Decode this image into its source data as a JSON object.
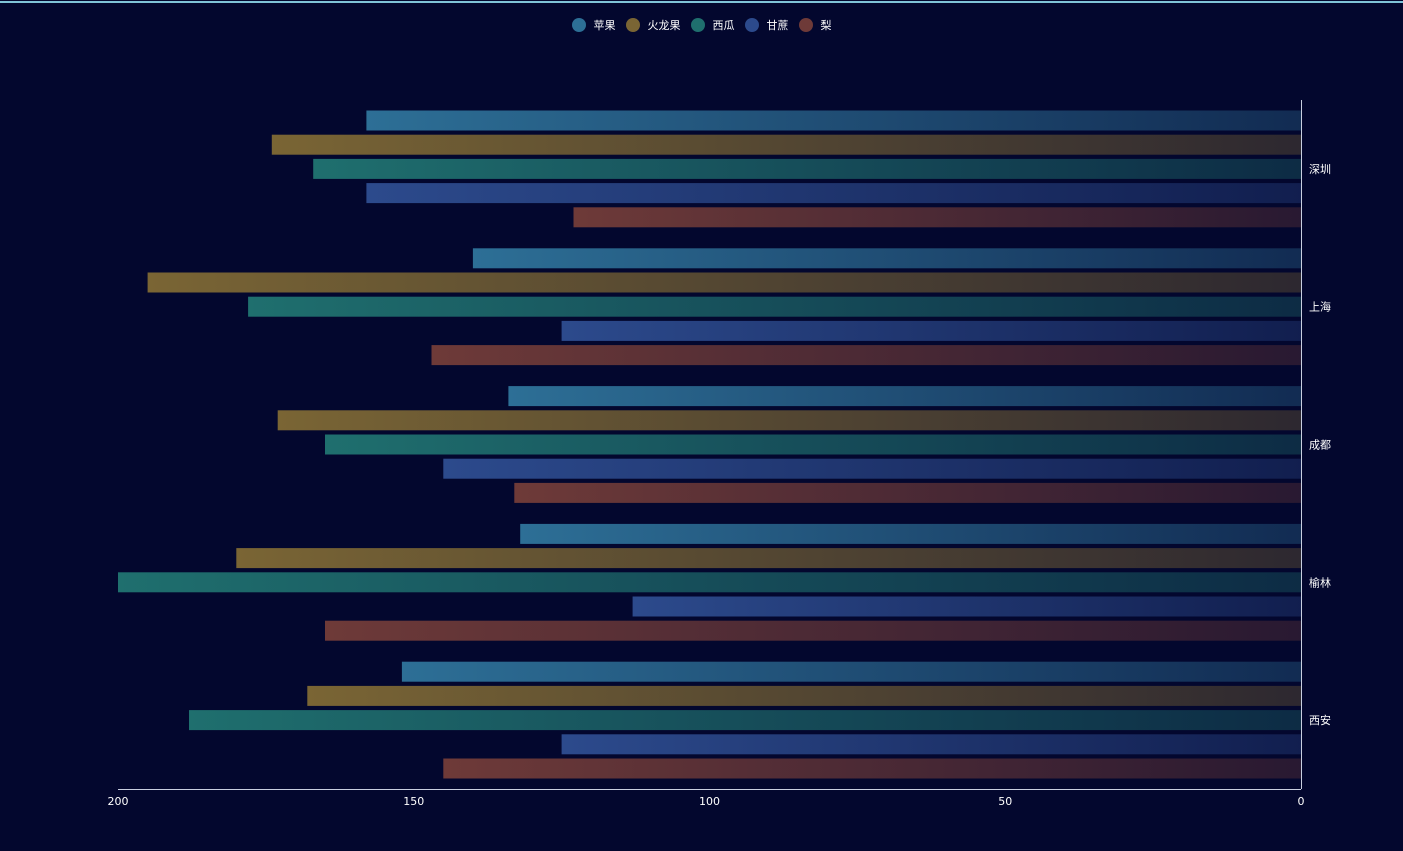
{
  "chart_data": {
    "type": "bar",
    "orientation": "horizontal",
    "x_axis_direction": "reversed",
    "y_axis_position": "right",
    "categories": [
      "深圳",
      "上海",
      "成都",
      "榆林",
      "西安"
    ],
    "series": [
      {
        "name": "苹果",
        "color": "#2d6f96",
        "values": [
          158,
          140,
          134,
          132,
          152
        ]
      },
      {
        "name": "火龙果",
        "color": "#7a6534",
        "values": [
          174,
          195,
          173,
          180,
          168
        ]
      },
      {
        "name": "西瓜",
        "color": "#1f6f6e",
        "values": [
          167,
          178,
          165,
          200,
          188
        ]
      },
      {
        "name": "甘蔗",
        "color": "#2c4a8c",
        "values": [
          158,
          125,
          145,
          113,
          125
        ]
      },
      {
        "name": "梨",
        "color": "#6e3a38",
        "values": [
          123,
          147,
          133,
          165,
          145
        ]
      }
    ],
    "xlim": [
      0,
      200
    ],
    "x_ticks": [
      200,
      150,
      100,
      50,
      0
    ],
    "grid": false,
    "legend_position": "top-center"
  }
}
